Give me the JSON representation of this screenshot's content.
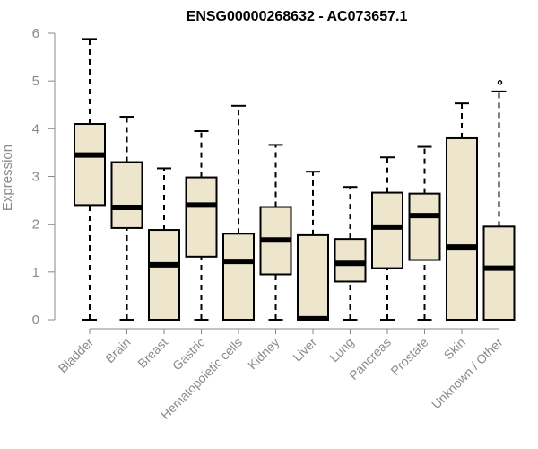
{
  "chart_data": {
    "type": "box",
    "title": "ENSG00000268632 - AC073657.1",
    "xlabel": "",
    "ylabel": "Expression",
    "ylim": [
      0,
      6
    ],
    "yticks": [
      "0",
      "1",
      "2",
      "3",
      "4",
      "5",
      "6"
    ],
    "box_color": "#ede6cc",
    "categories": [
      "Bladder",
      "Brain",
      "Breast",
      "Gastric",
      "Hematopoietic cells",
      "Kidney",
      "Liver",
      "Lung",
      "Pancreas",
      "Prostate",
      "Skin",
      "Unknown / Other"
    ],
    "boxes": [
      {
        "min": 0,
        "q1": 2.4,
        "median": 3.45,
        "q3": 4.1,
        "max": 5.88,
        "outliers": []
      },
      {
        "min": 0,
        "q1": 1.92,
        "median": 2.35,
        "q3": 3.3,
        "max": 4.25,
        "outliers": []
      },
      {
        "min": 0,
        "q1": 0,
        "median": 1.15,
        "q3": 1.88,
        "max": 3.17,
        "outliers": []
      },
      {
        "min": 0,
        "q1": 1.32,
        "median": 2.4,
        "q3": 2.98,
        "max": 3.95,
        "outliers": []
      },
      {
        "min": 0,
        "q1": 0,
        "median": 1.22,
        "q3": 1.8,
        "max": 4.48,
        "outliers": []
      },
      {
        "min": 0,
        "q1": 0.95,
        "median": 1.67,
        "q3": 2.36,
        "max": 3.66,
        "outliers": []
      },
      {
        "min": 0,
        "q1": 0,
        "median": 0.02,
        "q3": 1.77,
        "max": 3.1,
        "outliers": []
      },
      {
        "min": 0,
        "q1": 0.8,
        "median": 1.18,
        "q3": 1.69,
        "max": 2.78,
        "outliers": []
      },
      {
        "min": 0,
        "q1": 1.08,
        "median": 1.94,
        "q3": 2.66,
        "max": 3.4,
        "outliers": []
      },
      {
        "min": 0,
        "q1": 1.25,
        "median": 2.18,
        "q3": 2.64,
        "max": 3.62,
        "outliers": []
      },
      {
        "min": 0,
        "q1": 0,
        "median": 1.52,
        "q3": 3.8,
        "max": 4.53,
        "outliers": []
      },
      {
        "min": 0,
        "q1": 0,
        "median": 1.08,
        "q3": 1.95,
        "max": 4.78,
        "outliers": [
          4.97
        ]
      }
    ]
  }
}
